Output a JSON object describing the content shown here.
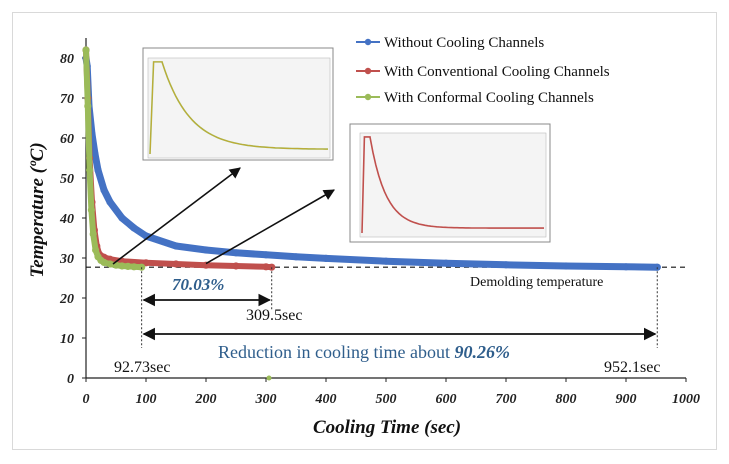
{
  "chart_data": {
    "type": "line",
    "xlabel": "Cooling Time (sec)",
    "ylabel": "Temperature (ºC)",
    "xlim": [
      0,
      1000
    ],
    "ylim": [
      0,
      85
    ],
    "x_ticks": [
      "0",
      "100",
      "200",
      "300",
      "400",
      "500",
      "600",
      "700",
      "800",
      "900",
      "1000"
    ],
    "y_ticks": [
      "0",
      "10",
      "20",
      "30",
      "40",
      "50",
      "60",
      "70",
      "80"
    ],
    "grid": false,
    "legend_position": "top-right",
    "series": [
      {
        "name": "Without Cooling Channels",
        "color": "#4472c4",
        "x": [
          0,
          2,
          5,
          10,
          15,
          20,
          30,
          40,
          60,
          80,
          100,
          150,
          200,
          250,
          300,
          350,
          400,
          500,
          600,
          700,
          800,
          900,
          952.1
        ],
        "y": [
          80,
          78,
          68,
          61,
          56,
          52,
          47,
          44,
          40,
          37.5,
          35.5,
          33,
          32,
          31.3,
          30.8,
          30.3,
          29.9,
          29.2,
          28.7,
          28.3,
          28.0,
          27.8,
          27.7
        ]
      },
      {
        "name": "With Conventional Cooling Channels",
        "color": "#c0504d",
        "x": [
          0,
          3,
          6,
          10,
          14,
          18,
          22,
          30,
          40,
          60,
          100,
          150,
          200,
          250,
          300,
          309.5
        ],
        "y": [
          82,
          70,
          55,
          44,
          37,
          33,
          31,
          30.2,
          29.7,
          29.2,
          28.8,
          28.5,
          28.2,
          28.0,
          27.8,
          27.7
        ]
      },
      {
        "name": "With Conformal Cooling Channels",
        "color": "#9bbb59",
        "x": [
          0,
          3,
          6,
          9,
          12,
          16,
          20,
          25,
          30,
          40,
          50,
          60,
          70,
          80,
          92.73
        ],
        "y": [
          82,
          68,
          52,
          42,
          36,
          32,
          30.3,
          29.4,
          28.9,
          28.5,
          28.2,
          28.0,
          27.9,
          27.8,
          27.7
        ]
      }
    ],
    "demolding_temperature": 27.7,
    "annotations": {
      "demolding_label": "Demolding temperature",
      "conformal_end": "92.73sec",
      "conventional_end": "309.5sec",
      "without_end": "952.1sec",
      "conformal_vs_conventional": "70.03%",
      "reduction_prefix": "Reduction in cooling time about",
      "reduction_value": "90.26%"
    }
  },
  "colors": {
    "without": "#4472c4",
    "conventional": "#c0504d",
    "conformal": "#9bbb59",
    "annotation_blue": "#2f5e8c"
  }
}
